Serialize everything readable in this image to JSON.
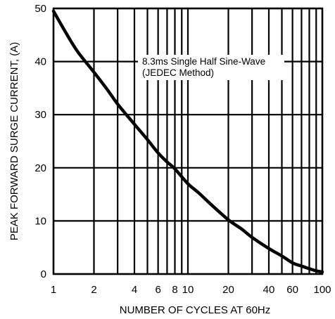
{
  "chart_data": {
    "type": "line",
    "xlabel": "NUMBER OF CYCLES AT 60Hz",
    "ylabel": "PEAK FORWARD SURGE CURRENT, (A)",
    "x_scale": "log",
    "xlim": [
      1,
      100
    ],
    "ylim": [
      0,
      50
    ],
    "x_ticks": [
      1,
      2,
      4,
      6,
      8,
      10,
      20,
      40,
      60,
      100
    ],
    "x_tick_labels": [
      "1",
      "2",
      "4",
      "6",
      "8",
      "10",
      "20",
      "40",
      "60",
      "100"
    ],
    "x_gridlines": [
      1,
      2,
      3,
      4,
      5,
      6,
      7,
      8,
      9,
      10,
      20,
      30,
      40,
      50,
      60,
      70,
      80,
      90,
      100
    ],
    "y_ticks": [
      0,
      10,
      20,
      30,
      40,
      50
    ],
    "y_tick_labels": [
      "0",
      "10",
      "20",
      "30",
      "40",
      "50"
    ],
    "grid": true,
    "annotation": {
      "lines": [
        "8.3ms Single Half Sine-Wave",
        "(JEDEC Method)"
      ]
    },
    "series": [
      {
        "x": [
          1,
          1.2,
          1.5,
          2,
          2.5,
          3,
          4,
          5,
          6,
          7,
          8,
          10,
          12,
          15,
          20,
          25,
          30,
          40,
          50,
          60,
          70,
          80,
          90,
          100
        ],
        "y": [
          49.5,
          46,
          42,
          38,
          34.8,
          32,
          28.2,
          25.3,
          22.8,
          21.1,
          19.8,
          17,
          15.3,
          13,
          10.2,
          8.5,
          6.9,
          4.8,
          3.4,
          2.1,
          1.5,
          1.0,
          0.6,
          0.4
        ]
      }
    ]
  }
}
